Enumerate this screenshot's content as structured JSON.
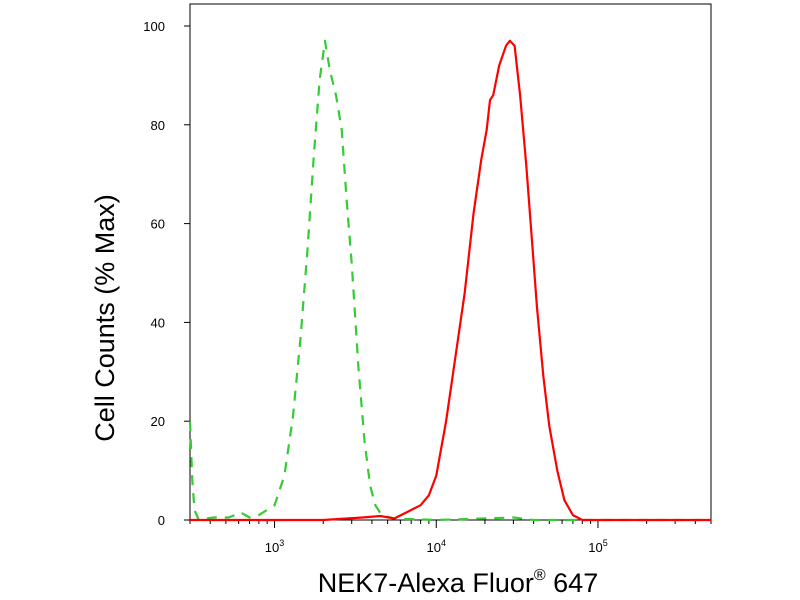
{
  "chart_data": {
    "type": "line",
    "title": "",
    "xlabel": "NEK7-Alexa Fluor",
    "xlabel_superscript": "®",
    "xlabel_suffix": " 647",
    "ylabel": "Cell Counts (% Max)",
    "x_scale": "log",
    "xlim": [
      300,
      500000
    ],
    "ylim": [
      0,
      100
    ],
    "x_ticks": [
      {
        "value": 1000,
        "base": "10",
        "exp": "3"
      },
      {
        "value": 10000,
        "base": "10",
        "exp": "4"
      },
      {
        "value": 100000,
        "base": "10",
        "exp": "5"
      }
    ],
    "y_ticks": [
      "0",
      "20",
      "40",
      "60",
      "80",
      "100"
    ],
    "grid": false,
    "legend": "none",
    "series": [
      {
        "color": "#33cc33",
        "style": "dashed",
        "points": [
          [
            300,
            20
          ],
          [
            310,
            8
          ],
          [
            320,
            2
          ],
          [
            340,
            0
          ],
          [
            420,
            0.5
          ],
          [
            520,
            0.5
          ],
          [
            620,
            1.5
          ],
          [
            700,
            0.5
          ],
          [
            800,
            1
          ],
          [
            1000,
            3
          ],
          [
            1150,
            9
          ],
          [
            1300,
            21
          ],
          [
            1450,
            37
          ],
          [
            1600,
            55
          ],
          [
            1750,
            74
          ],
          [
            1900,
            89
          ],
          [
            2050,
            97
          ],
          [
            2200,
            91
          ],
          [
            2400,
            86
          ],
          [
            2600,
            79
          ],
          [
            2800,
            64
          ],
          [
            3000,
            52
          ],
          [
            3300,
            31
          ],
          [
            3600,
            16
          ],
          [
            3900,
            7
          ],
          [
            4200,
            3
          ],
          [
            4600,
            1
          ],
          [
            5500,
            0.3
          ],
          [
            10000,
            0
          ],
          [
            30000,
            0.5
          ],
          [
            40000,
            0
          ],
          [
            500000,
            0
          ]
        ]
      },
      {
        "color": "#ff0000",
        "style": "solid",
        "points": [
          [
            300,
            0
          ],
          [
            2000,
            0
          ],
          [
            3500,
            0.5
          ],
          [
            4500,
            0.8
          ],
          [
            5500,
            0.3
          ],
          [
            6500,
            1.5
          ],
          [
            8000,
            3
          ],
          [
            9000,
            5
          ],
          [
            10000,
            9
          ],
          [
            11500,
            20
          ],
          [
            13000,
            32
          ],
          [
            15000,
            46
          ],
          [
            17000,
            62
          ],
          [
            19000,
            73
          ],
          [
            20500,
            79
          ],
          [
            21500,
            85
          ],
          [
            22500,
            86
          ],
          [
            24500,
            92
          ],
          [
            27000,
            96
          ],
          [
            28500,
            97
          ],
          [
            30500,
            96
          ],
          [
            33000,
            86
          ],
          [
            36000,
            72
          ],
          [
            39000,
            57
          ],
          [
            42000,
            43
          ],
          [
            46000,
            29
          ],
          [
            50000,
            19
          ],
          [
            56000,
            10
          ],
          [
            62000,
            4
          ],
          [
            70000,
            1
          ],
          [
            80000,
            0
          ],
          [
            500000,
            0
          ]
        ]
      }
    ]
  }
}
